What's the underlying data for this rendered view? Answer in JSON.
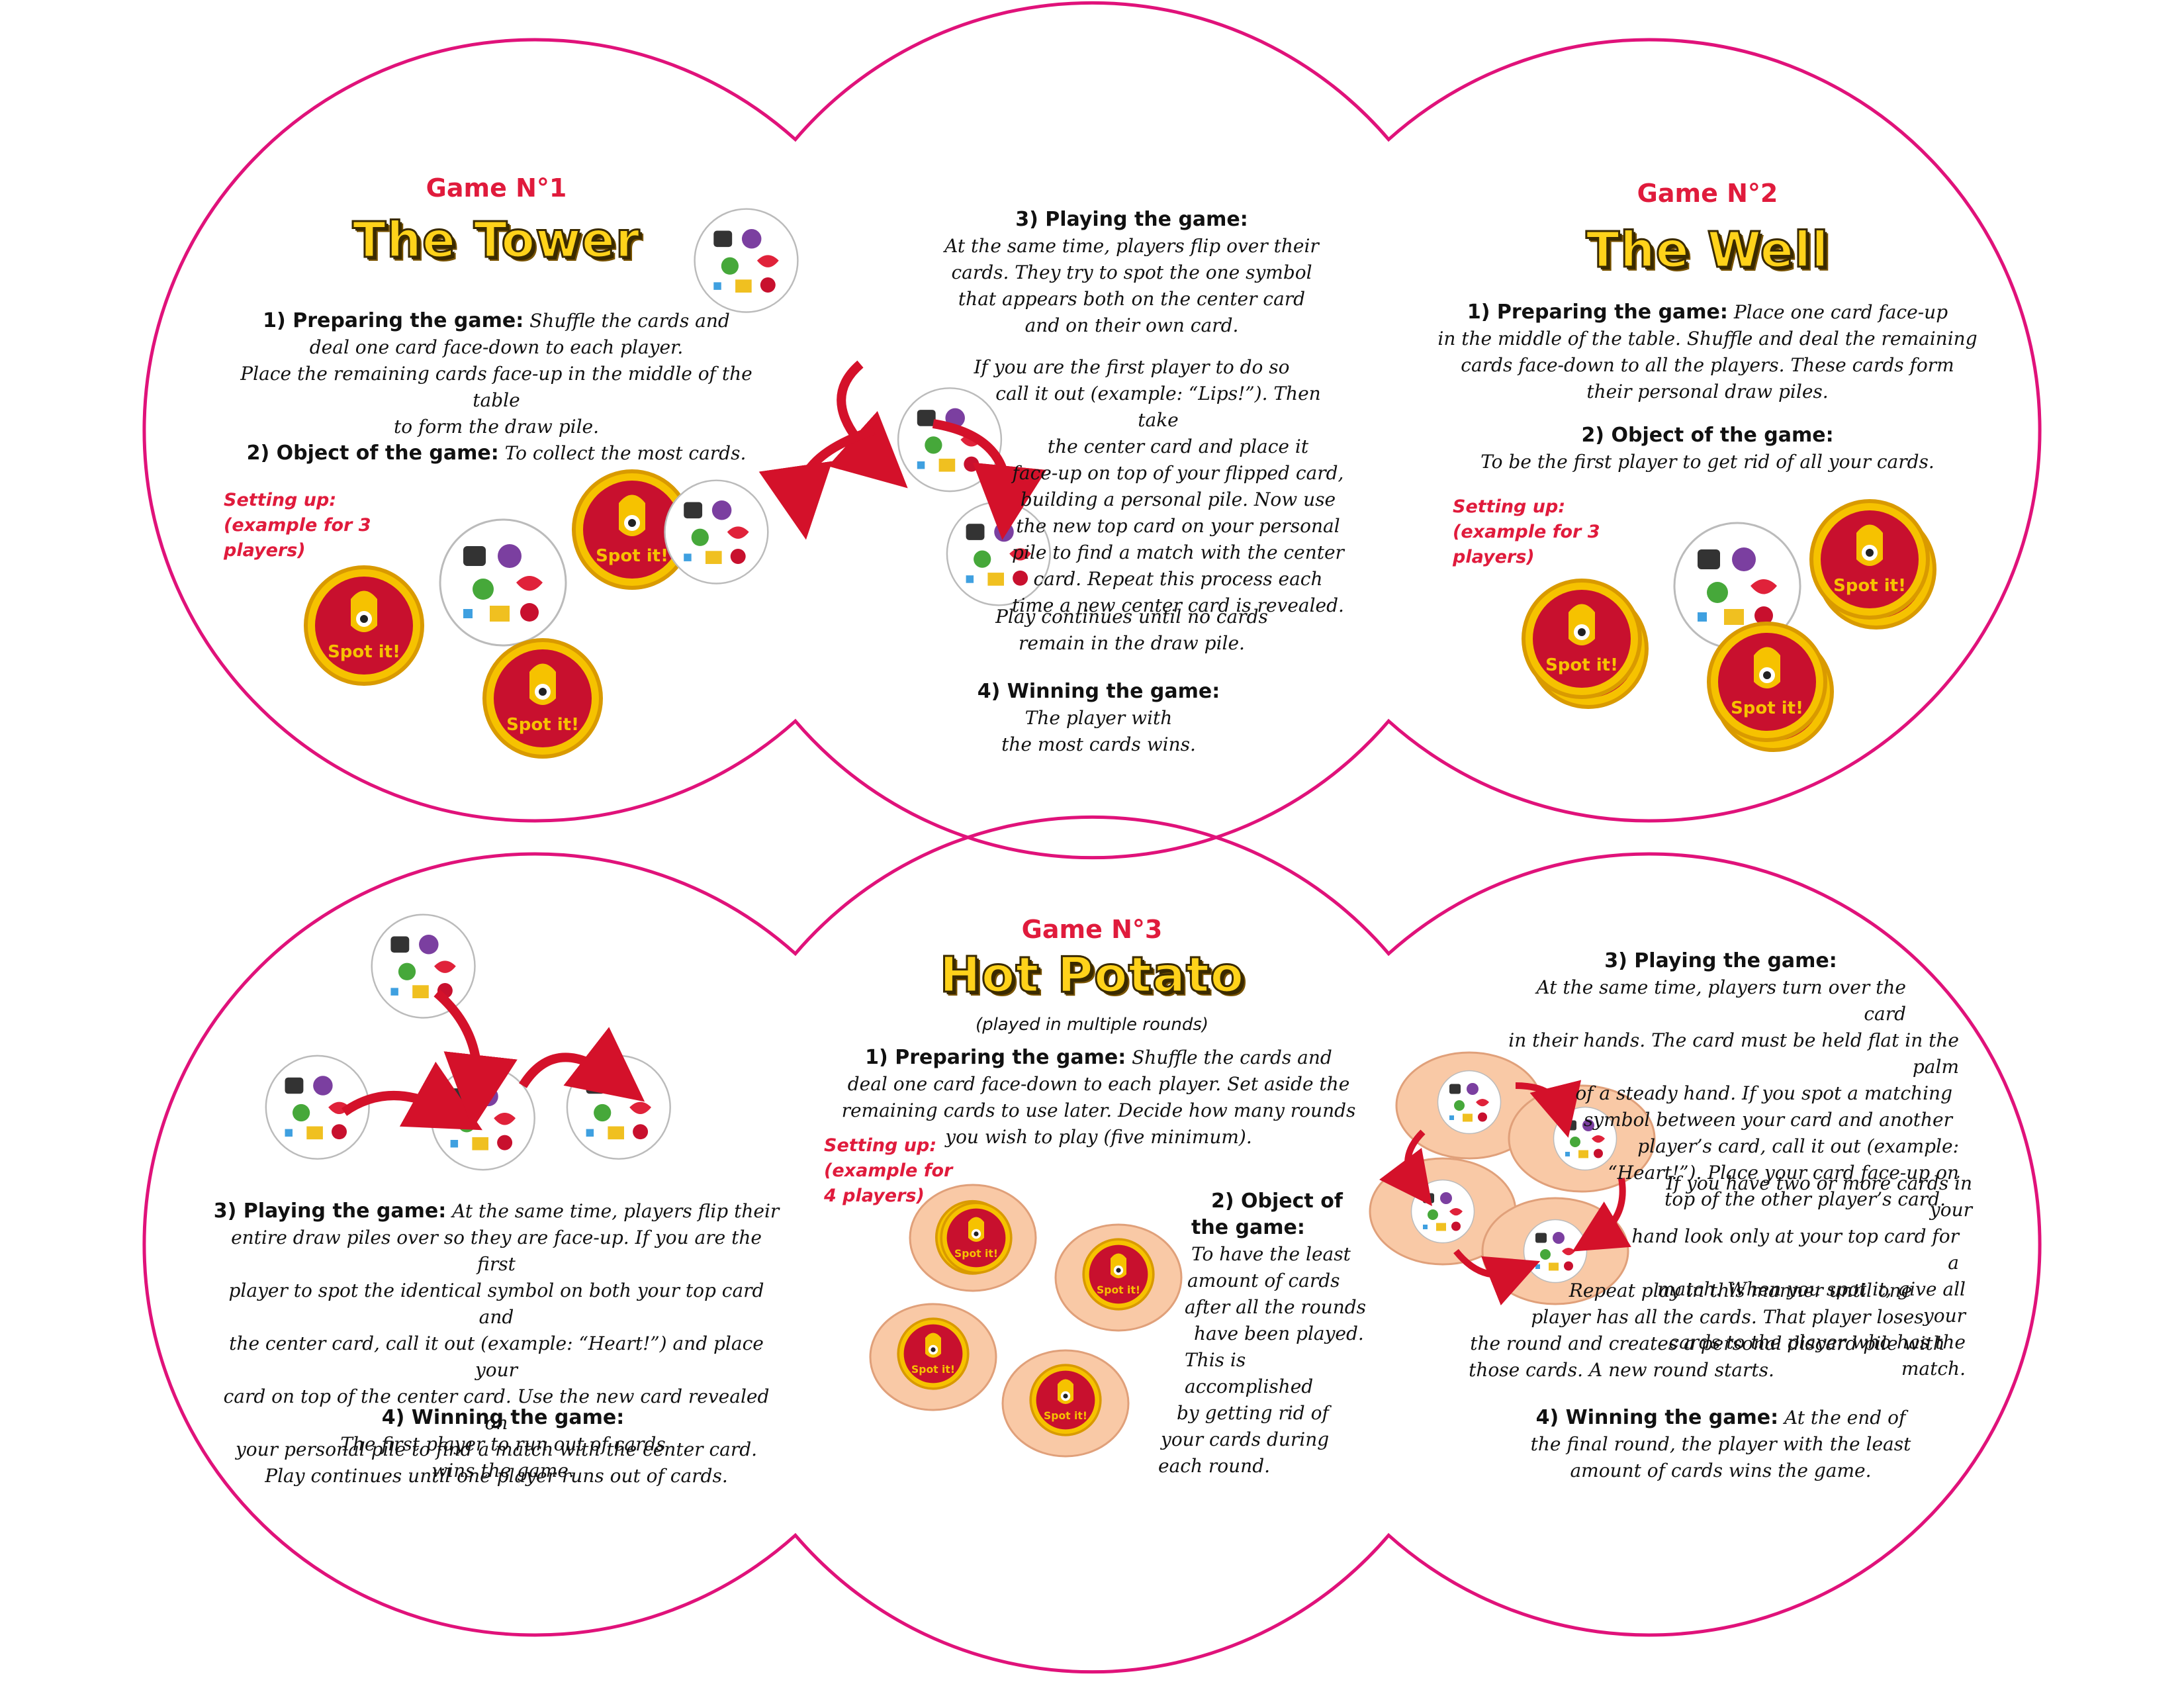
{
  "panels": {
    "top_left": {
      "label": "Game N°1",
      "title": "The Tower",
      "prep_heading": "1) Preparing the game:",
      "prep_lines": [
        "Shuffle the cards and",
        "deal one card face-down to each player.",
        "Place the remaining cards face-up in the middle of the table",
        "to form the draw pile."
      ],
      "object_heading": "2) Object of the game:",
      "object_text": "To collect the most cards.",
      "setup_lines": [
        "Setting up:",
        "(example for 3 players)"
      ]
    },
    "top_center": {
      "play_heading": "3) Playing the game:",
      "play_lines": [
        "At the same time, players flip over their",
        "cards. They try to spot the one symbol",
        "that appears both on the center card",
        "and on their own card."
      ],
      "match_lines": [
        "If you are the first player to do so",
        "call it out (example: “Lips!”). Then take",
        "the center card and place it",
        "face-up on top of your flipped card,",
        "building a personal pile. Now use",
        "the new top card on your personal",
        "pile to find a match with the center",
        "card. Repeat this process each",
        "time a new center card is revealed."
      ],
      "continue_lines": [
        "Play continues until no cards",
        "remain in the draw pile."
      ],
      "win_heading": "4) Winning the game:",
      "win_lines": [
        "The player with",
        "the most cards wins."
      ]
    },
    "top_right": {
      "label": "Game N°2",
      "title": "The Well",
      "prep_heading": "1) Preparing the game:",
      "prep_lines": [
        "Place one card face-up",
        "in the middle of the table. Shuffle and deal the remaining",
        "cards face-down to all the players. These cards form",
        "their personal draw piles."
      ],
      "object_heading": "2) Object of the game:",
      "object_text": "To be the first player to get rid of all your cards.",
      "setup_lines": [
        "Setting up:",
        "(example for 3 players)"
      ]
    },
    "bottom_left": {
      "play_heading": "3) Playing the game:",
      "play_lines": [
        "At the same time, players flip their",
        "entire draw piles over so they are face-up. If you are the first",
        "player to spot the identical symbol on both your top card and",
        "the center card, call it out (example: “Heart!”) and place your",
        "card on top of the center card. Use the new card revealed on",
        "your personal pile to find a match with the center card.",
        "Play continues until one player runs out of cards."
      ],
      "win_heading": "4) Winning the game:",
      "win_lines": [
        "The first player to run out of cards",
        "wins the game."
      ]
    },
    "bottom_center": {
      "label": "Game N°3",
      "title": "Hot Potato",
      "subtitle": "(played  in multiple  rounds)",
      "prep_heading": "1) Preparing the game:",
      "prep_lines": [
        "Shuffle the cards and",
        "deal one card face-down to each player. Set aside the",
        "remaining cards to use later.  Decide how many rounds",
        "you wish to play (five minimum)."
      ],
      "setup_lines": [
        "Setting up:",
        "(example for",
        "4 players)"
      ],
      "object_heading_lines": [
        "2) Object of",
        "the game:"
      ],
      "object_lines": [
        "To have the least",
        "amount of cards",
        "after all the rounds",
        "have been played.",
        "This is accomplished",
        "by getting rid of",
        "your cards during",
        "each round."
      ]
    },
    "bottom_right": {
      "play_heading": "3) Playing the game:",
      "play_lines": [
        "At the same time, players turn over the card",
        "in their hands. The card must be held flat in the palm",
        "of a steady hand. If you spot a matching",
        "symbol between your card and another",
        "player’s card, call it out (example:",
        "“Heart!”). Place your card face-up on",
        "top of the other player’s card."
      ],
      "multi_lines": [
        "If you have two or more cards in your",
        "hand look only at your top card for a",
        "match. When you spot it, give all your",
        "cards to the player who has the match."
      ],
      "repeat_lines": [
        "Repeat play in this manner until one",
        "player has all the cards. That player loses",
        "the round and creates a personal discard pile with",
        "those cards. A new round starts."
      ],
      "win_heading": "4) Winning the game:",
      "win_lines": [
        "At the end of",
        "the final round, the player with the least",
        "amount of cards wins the game."
      ]
    }
  },
  "card_back_text": "Spot it!",
  "colors": {
    "outline": "#e0127a",
    "accent_red": "#e01b3c",
    "title_yellow": "#ffd21a",
    "card_red": "#c8102e",
    "card_rim": "#f6c200",
    "hand": "#f9c9a6"
  },
  "icons": [
    "card-back-icon",
    "symbol-card-icon",
    "arrow-icon",
    "hand-icon"
  ]
}
